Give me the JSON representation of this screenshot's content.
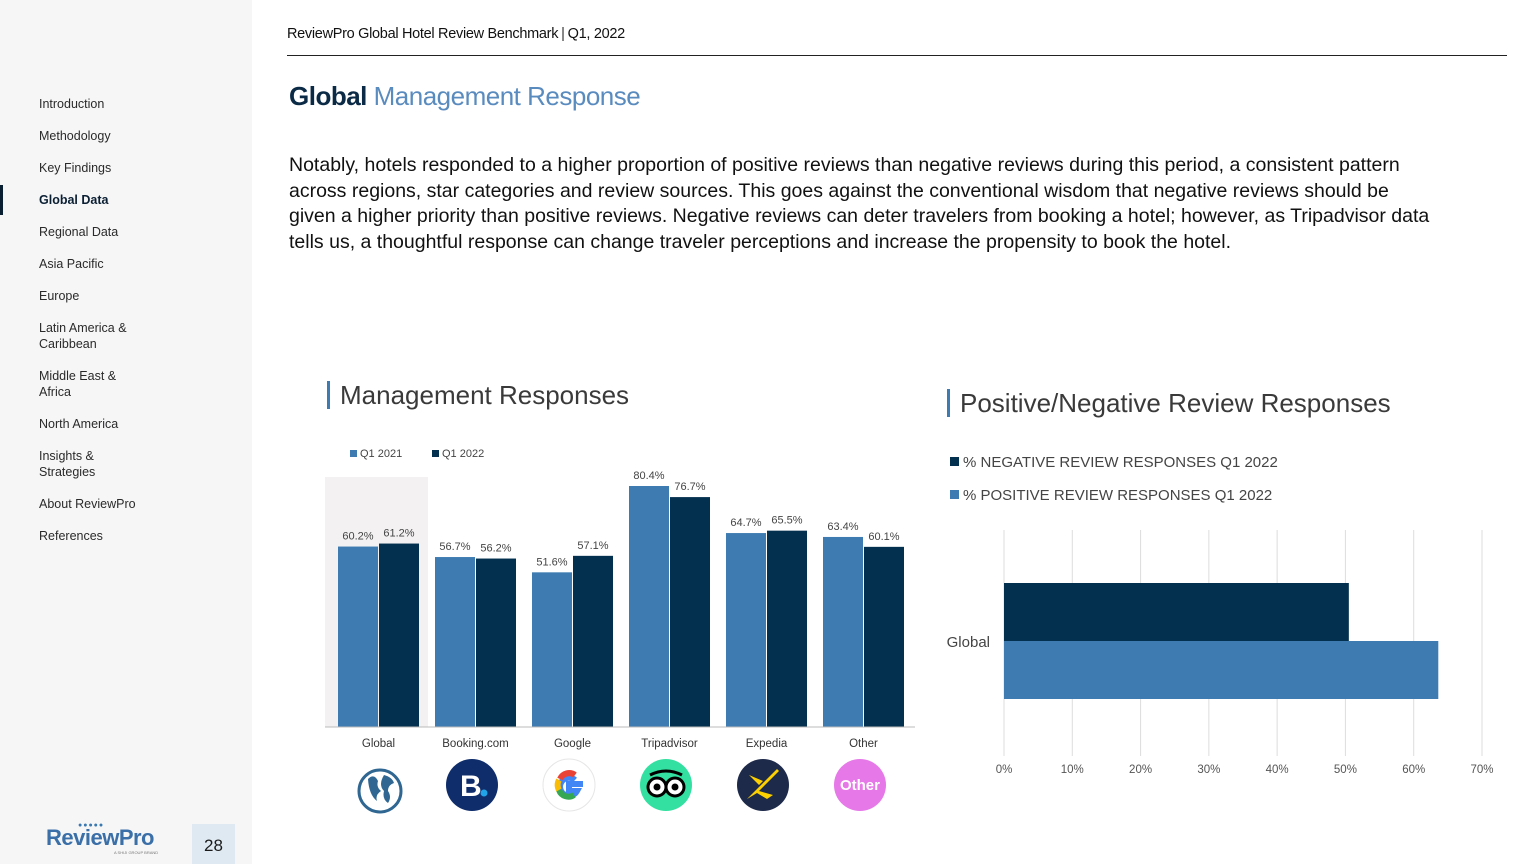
{
  "header": {
    "report": "ReviewPro Global Hotel Review Benchmark",
    "separator": "|",
    "period": "Q1, 2022"
  },
  "title": {
    "bold": "Global",
    "light": "Management Response"
  },
  "body": "Notably, hotels responded to a higher proportion of positive reviews than negative reviews during this period, a consistent pattern across regions, star categories and review sources. This goes against the conventional wisdom that negative reviews should be given a higher priority than positive reviews. Negative reviews can deter travelers from booking a hotel; however, as Tripadvisor data tells us, a thoughtful response can change traveler perceptions and increase the propensity to book the hotel.",
  "sidebar": {
    "items": [
      {
        "label": "Introduction",
        "active": false
      },
      {
        "label": "Methodology",
        "active": false
      },
      {
        "label": "Key Findings",
        "active": false
      },
      {
        "label": "Global Data",
        "active": true
      },
      {
        "label": "Regional Data",
        "active": false
      },
      {
        "label": "Asia Pacific",
        "active": false
      },
      {
        "label": "Europe",
        "active": false
      },
      {
        "label": "Latin America & Caribbean",
        "active": false
      },
      {
        "label": "Middle East & Africa",
        "active": false
      },
      {
        "label": "North America",
        "active": false
      },
      {
        "label": "Insights & Strategies",
        "active": false
      },
      {
        "label": "About ReviewPro",
        "active": false
      },
      {
        "label": "References",
        "active": false
      }
    ],
    "logo": {
      "text": "ReviewPro",
      "sub": "A SHIJI GROUP BRAND"
    },
    "page_number": "28"
  },
  "chart_data": [
    {
      "type": "bar",
      "title": "Management Responses",
      "categories": [
        "Global",
        "Booking.com",
        "Google",
        "Tripadvisor",
        "Expedia",
        "Other"
      ],
      "series": [
        {
          "name": "Q1 2021",
          "color": "#3d7bb0",
          "values": [
            60.2,
            56.7,
            51.6,
            80.4,
            64.7,
            63.4
          ],
          "labels": [
            "60.2%",
            "56.7%",
            "51.6%",
            "80.4%",
            "64.7%",
            "63.4%"
          ]
        },
        {
          "name": "Q1 2022",
          "color": "#03304f",
          "values": [
            61.2,
            56.2,
            57.1,
            76.7,
            65.5,
            60.1
          ],
          "labels": [
            "61.2%",
            "56.2%",
            "57.1%",
            "76.7%",
            "65.5%",
            "60.1%"
          ]
        }
      ],
      "ylim": [
        0,
        90
      ],
      "highlight_category": "Global",
      "legend": "top-left",
      "category_icons": [
        "globe-icon",
        "booking-icon",
        "google-icon",
        "tripadvisor-icon",
        "expedia-icon",
        "other-icon"
      ],
      "other_icon_text": "Other"
    },
    {
      "type": "bar",
      "orientation": "horizontal",
      "title": "Positive/Negative Review Responses",
      "categories": [
        "Global"
      ],
      "series": [
        {
          "name": "% NEGATIVE REVIEW RESPONSES Q1 2022",
          "color": "#03304f",
          "values": [
            50.5
          ]
        },
        {
          "name": "% POSITIVE REVIEW RESPONSES Q1 2022",
          "color": "#3d7bb0",
          "values": [
            63.6
          ]
        }
      ],
      "xlim": [
        0,
        70
      ],
      "xticks": [
        "0%",
        "10%",
        "20%",
        "30%",
        "40%",
        "50%",
        "60%",
        "70%"
      ],
      "grid": true,
      "legend": "top-left"
    }
  ]
}
